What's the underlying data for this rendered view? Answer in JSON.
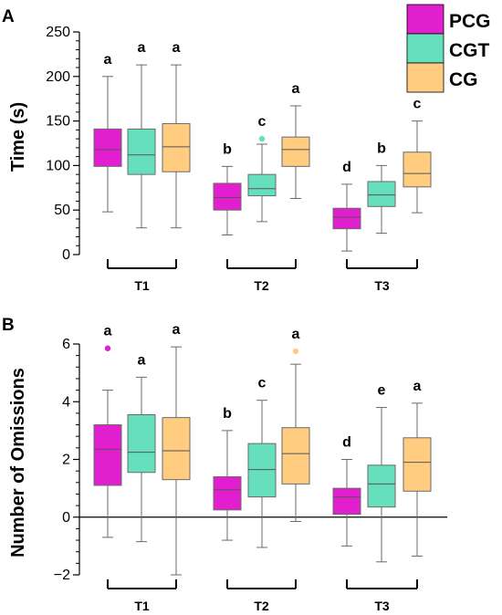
{
  "legend": [
    {
      "label": "PCG",
      "color": "#e21fce"
    },
    {
      "label": "CGT",
      "color": "#66e0bc"
    },
    {
      "label": "CG",
      "color": "#ffcc80"
    }
  ],
  "chart_data": [
    {
      "type": "boxplot",
      "panel": "A",
      "ylabel": "Time (s)",
      "ylim": [
        0,
        250
      ],
      "yticks": [
        0,
        50,
        100,
        150,
        200,
        250
      ],
      "groups": [
        "T1",
        "T2",
        "T3"
      ],
      "series": [
        {
          "name": "PCG",
          "color": "#e21fce",
          "boxes": [
            {
              "min": 48,
              "q1": 99,
              "median": 118,
              "q3": 141,
              "max": 200,
              "letter": "a",
              "outliers": []
            },
            {
              "min": 22,
              "q1": 50,
              "median": 64,
              "q3": 80,
              "max": 99,
              "letter": "b",
              "outliers": []
            },
            {
              "min": 4,
              "q1": 29,
              "median": 42,
              "q3": 52,
              "max": 79,
              "letter": "d",
              "outliers": []
            }
          ]
        },
        {
          "name": "CGT",
          "color": "#66e0bc",
          "boxes": [
            {
              "min": 30,
              "q1": 90,
              "median": 112,
              "q3": 141,
              "max": 213,
              "letter": "a",
              "outliers": []
            },
            {
              "min": 37,
              "q1": 66,
              "median": 74,
              "q3": 90,
              "max": 124,
              "letter": "c",
              "outliers": [
                130
              ]
            },
            {
              "min": 24,
              "q1": 54,
              "median": 67,
              "q3": 82,
              "max": 100,
              "letter": "b",
              "outliers": []
            }
          ]
        },
        {
          "name": "CG",
          "color": "#ffcc80",
          "boxes": [
            {
              "min": 30,
              "q1": 93,
              "median": 121,
              "q3": 147,
              "max": 213,
              "letter": "a",
              "outliers": []
            },
            {
              "min": 63,
              "q1": 99,
              "median": 118,
              "q3": 132,
              "max": 167,
              "letter": "a",
              "outliers": []
            },
            {
              "min": 47,
              "q1": 76,
              "median": 91,
              "q3": 115,
              "max": 150,
              "letter": "c",
              "outliers": []
            }
          ]
        }
      ]
    },
    {
      "type": "boxplot",
      "panel": "B",
      "ylabel": "Number of Omissions",
      "ylim": [
        -2,
        6
      ],
      "yticks": [
        -2,
        0,
        2,
        4,
        6
      ],
      "zero_line": true,
      "groups": [
        "T1",
        "T2",
        "T3"
      ],
      "series": [
        {
          "name": "PCG",
          "color": "#e21fce",
          "boxes": [
            {
              "min": -0.7,
              "q1": 1.1,
              "median": 2.35,
              "q3": 3.2,
              "max": 4.4,
              "letter": "a",
              "outliers": [
                5.85
              ]
            },
            {
              "min": -0.8,
              "q1": 0.25,
              "median": 0.95,
              "q3": 1.4,
              "max": 3.0,
              "letter": "b",
              "outliers": []
            },
            {
              "min": -1.0,
              "q1": 0.1,
              "median": 0.7,
              "q3": 1.0,
              "max": 2.0,
              "letter": "d",
              "outliers": []
            }
          ]
        },
        {
          "name": "CGT",
          "color": "#66e0bc",
          "boxes": [
            {
              "min": -0.85,
              "q1": 1.55,
              "median": 2.25,
              "q3": 3.55,
              "max": 4.85,
              "letter": "a",
              "outliers": []
            },
            {
              "min": -1.05,
              "q1": 0.7,
              "median": 1.65,
              "q3": 2.55,
              "max": 4.05,
              "letter": "c",
              "outliers": []
            },
            {
              "min": -1.55,
              "q1": 0.35,
              "median": 1.15,
              "q3": 1.8,
              "max": 3.8,
              "letter": "e",
              "outliers": []
            }
          ]
        },
        {
          "name": "CG",
          "color": "#ffcc80",
          "boxes": [
            {
              "min": -2.0,
              "q1": 1.3,
              "median": 2.3,
              "q3": 3.45,
              "max": 5.9,
              "letter": "a",
              "outliers": []
            },
            {
              "min": -0.15,
              "q1": 1.15,
              "median": 2.2,
              "q3": 3.1,
              "max": 5.3,
              "letter": "a",
              "outliers": [
                5.75
              ]
            },
            {
              "min": -1.35,
              "q1": 0.9,
              "median": 1.9,
              "q3": 2.75,
              "max": 3.95,
              "letter": "a",
              "outliers": []
            }
          ]
        }
      ]
    }
  ]
}
